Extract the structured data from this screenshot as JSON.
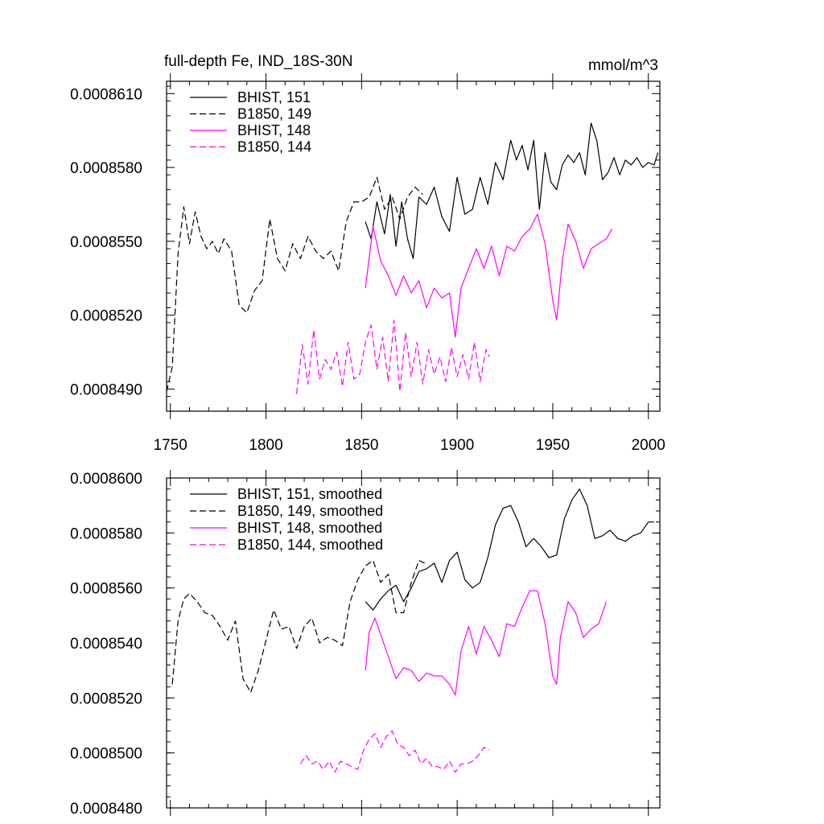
{
  "chart_data": [
    {
      "type": "line",
      "title": "full-depth Fe, IND_18S-30N",
      "units": "mmol/m^3",
      "xlim": [
        1748,
        2006
      ],
      "ylim": [
        0.0008481,
        0.0008615
      ],
      "x_ticks": [
        1750,
        1800,
        1850,
        1900,
        1950,
        2000
      ],
      "y_ticks": [
        "0.0008490",
        "0.0008520",
        "0.0008550",
        "0.0008580",
        "0.0008610"
      ],
      "y_tick_values": [
        0.000849,
        0.000852,
        0.000855,
        0.000858,
        0.000861
      ],
      "legend": [
        "BHIST, 151",
        "B1850, 149",
        "BHIST, 148",
        "B1850, 144"
      ],
      "series": [
        {
          "name": "BHIST, 151",
          "color": "#000000",
          "dash": false,
          "x": [
            1852,
            1855,
            1858,
            1862,
            1865,
            1868,
            1871,
            1874,
            1877,
            1880,
            1884,
            1888,
            1892,
            1896,
            1900,
            1904,
            1908,
            1912,
            1916,
            1920,
            1924,
            1928,
            1931,
            1934,
            1937,
            1940,
            1943,
            1946,
            1949,
            1952,
            1955,
            1958,
            1961,
            1964,
            1967,
            1970,
            1973,
            1976,
            1979,
            1982,
            1985,
            1988,
            1991,
            1994,
            1997,
            2000,
            2003,
            2005
          ],
          "y": [
            0.0008558,
            0.0008551,
            0.0008566,
            0.0008553,
            0.0008569,
            0.0008548,
            0.0008566,
            0.0008551,
            0.0008543,
            0.0008568,
            0.0008565,
            0.0008572,
            0.000856,
            0.0008554,
            0.0008576,
            0.0008561,
            0.0008563,
            0.0008576,
            0.0008565,
            0.0008582,
            0.0008575,
            0.0008591,
            0.0008583,
            0.0008589,
            0.0008579,
            0.0008591,
            0.0008563,
            0.0008586,
            0.0008574,
            0.0008571,
            0.0008581,
            0.0008585,
            0.0008582,
            0.0008586,
            0.0008577,
            0.0008598,
            0.0008591,
            0.0008575,
            0.0008578,
            0.0008584,
            0.0008577,
            0.0008583,
            0.0008581,
            0.0008584,
            0.000858,
            0.0008582,
            0.0008581,
            0.0008586
          ]
        },
        {
          "name": "B1850, 149",
          "color": "#000000",
          "dash": true,
          "x": [
            1748,
            1751,
            1754,
            1757,
            1760,
            1763,
            1766,
            1769,
            1772,
            1775,
            1778,
            1782,
            1786,
            1790,
            1794,
            1798,
            1802,
            1806,
            1810,
            1814,
            1818,
            1822,
            1826,
            1830,
            1834,
            1838,
            1842,
            1846,
            1850,
            1854,
            1858,
            1862,
            1866,
            1870,
            1874,
            1878,
            1882
          ],
          "y": [
            0.0008489,
            0.0008499,
            0.0008545,
            0.0008564,
            0.0008549,
            0.0008562,
            0.0008552,
            0.0008547,
            0.000855,
            0.0008545,
            0.0008551,
            0.0008546,
            0.0008524,
            0.0008521,
            0.000853,
            0.0008534,
            0.0008559,
            0.0008543,
            0.0008538,
            0.0008549,
            0.0008543,
            0.0008552,
            0.0008546,
            0.0008543,
            0.0008546,
            0.0008538,
            0.0008558,
            0.0008566,
            0.0008566,
            0.0008568,
            0.0008576,
            0.0008563,
            0.0008568,
            0.0008559,
            0.0008568,
            0.0008572,
            0.0008569
          ]
        },
        {
          "name": "BHIST, 148",
          "color": "#ff00ff",
          "dash": false,
          "x": [
            1852,
            1856,
            1860,
            1864,
            1868,
            1872,
            1876,
            1880,
            1884,
            1888,
            1892,
            1896,
            1899,
            1902,
            1906,
            1910,
            1914,
            1918,
            1922,
            1926,
            1930,
            1934,
            1938,
            1942,
            1946,
            1950,
            1952,
            1955,
            1958,
            1962,
            1966,
            1970,
            1974,
            1978,
            1981
          ],
          "y": [
            0.0008531,
            0.0008556,
            0.0008542,
            0.0008536,
            0.0008528,
            0.0008536,
            0.0008529,
            0.0008534,
            0.0008523,
            0.0008531,
            0.0008527,
            0.0008529,
            0.0008511,
            0.0008531,
            0.0008539,
            0.0008547,
            0.0008539,
            0.0008548,
            0.0008536,
            0.0008548,
            0.0008546,
            0.0008552,
            0.0008555,
            0.0008561,
            0.0008549,
            0.0008526,
            0.0008518,
            0.0008542,
            0.0008557,
            0.000855,
            0.0008539,
            0.0008547,
            0.0008549,
            0.0008551,
            0.0008555
          ]
        },
        {
          "name": "B1850, 144",
          "color": "#ff00ff",
          "dash": true,
          "x": [
            1816,
            1819,
            1822,
            1825,
            1828,
            1831,
            1834,
            1837,
            1840,
            1843,
            1846,
            1849,
            1852,
            1855,
            1858,
            1861,
            1864,
            1867,
            1870,
            1873,
            1876,
            1879,
            1882,
            1885,
            1888,
            1891,
            1894,
            1897,
            1900,
            1903,
            1906,
            1909,
            1912,
            1915,
            1917
          ],
          "y": [
            0.0008488,
            0.0008508,
            0.0008492,
            0.0008514,
            0.0008494,
            0.0008502,
            0.0008498,
            0.0008505,
            0.0008491,
            0.0008509,
            0.0008494,
            0.0008496,
            0.0008509,
            0.0008516,
            0.0008498,
            0.0008511,
            0.0008493,
            0.0008518,
            0.0008489,
            0.0008513,
            0.0008495,
            0.0008509,
            0.0008492,
            0.0008506,
            0.0008496,
            0.0008503,
            0.0008493,
            0.0008507,
            0.0008495,
            0.0008504,
            0.0008494,
            0.0008509,
            0.0008493,
            0.0008506,
            0.0008503
          ]
        }
      ]
    },
    {
      "type": "line",
      "title": "",
      "units": "",
      "xlim": [
        1748,
        2006
      ],
      "ylim": [
        0.000848,
        0.00086
      ],
      "x_ticks": [
        1750,
        1800,
        1850,
        1900,
        1950,
        2000
      ],
      "y_ticks": [
        "0.0008480",
        "0.0008500",
        "0.0008520",
        "0.0008540",
        "0.0008560",
        "0.0008580",
        "0.0008600"
      ],
      "y_tick_values": [
        0.000848,
        0.00085,
        0.000852,
        0.000854,
        0.000856,
        0.000858,
        0.00086
      ],
      "legend": [
        "BHIST, 151, smoothed",
        "B1850, 149, smoothed",
        "BHIST, 148, smoothed",
        "B1850, 144, smoothed"
      ],
      "series": [
        {
          "name": "BHIST, 151, smoothed",
          "color": "#000000",
          "dash": false,
          "x": [
            1852,
            1856,
            1860,
            1864,
            1868,
            1872,
            1876,
            1880,
            1884,
            1888,
            1892,
            1896,
            1900,
            1904,
            1908,
            1912,
            1916,
            1920,
            1924,
            1928,
            1932,
            1936,
            1940,
            1944,
            1948,
            1952,
            1956,
            1960,
            1964,
            1968,
            1972,
            1976,
            1980,
            1984,
            1988,
            1992,
            1996,
            2000,
            2003
          ],
          "y": [
            0.0008555,
            0.0008552,
            0.0008556,
            0.0008559,
            0.0008561,
            0.0008555,
            0.000856,
            0.0008566,
            0.0008567,
            0.0008569,
            0.0008562,
            0.000857,
            0.0008573,
            0.0008563,
            0.000856,
            0.0008562,
            0.0008571,
            0.0008583,
            0.0008589,
            0.000859,
            0.0008584,
            0.0008575,
            0.0008578,
            0.0008575,
            0.0008571,
            0.0008572,
            0.0008585,
            0.0008592,
            0.0008596,
            0.000859,
            0.0008578,
            0.0008579,
            0.0008581,
            0.0008578,
            0.0008577,
            0.0008579,
            0.000858,
            0.0008584,
            0.0008584
          ]
        },
        {
          "name": "B1850, 149, smoothed",
          "color": "#000000",
          "dash": true,
          "x": [
            1751,
            1754,
            1757,
            1760,
            1764,
            1768,
            1772,
            1776,
            1780,
            1784,
            1788,
            1792,
            1796,
            1800,
            1804,
            1808,
            1812,
            1816,
            1820,
            1824,
            1828,
            1832,
            1836,
            1840,
            1844,
            1848,
            1852,
            1856,
            1860,
            1864,
            1868,
            1872,
            1876,
            1880,
            1883
          ],
          "y": [
            0.0008525,
            0.0008548,
            0.0008556,
            0.0008558,
            0.0008555,
            0.0008551,
            0.000855,
            0.0008546,
            0.0008541,
            0.0008548,
            0.0008527,
            0.0008522,
            0.000853,
            0.0008541,
            0.0008552,
            0.0008545,
            0.0008546,
            0.0008538,
            0.0008546,
            0.0008549,
            0.000854,
            0.0008542,
            0.0008541,
            0.0008539,
            0.0008555,
            0.0008563,
            0.0008568,
            0.000857,
            0.0008562,
            0.0008565,
            0.0008551,
            0.0008551,
            0.0008562,
            0.000857,
            0.0008569
          ]
        },
        {
          "name": "BHIST, 148, smoothed",
          "color": "#ff00ff",
          "dash": false,
          "x": [
            1852,
            1854,
            1857,
            1860,
            1864,
            1868,
            1872,
            1876,
            1880,
            1884,
            1888,
            1892,
            1896,
            1899,
            1902,
            1906,
            1910,
            1914,
            1918,
            1922,
            1926,
            1930,
            1934,
            1938,
            1942,
            1946,
            1950,
            1952,
            1954,
            1958,
            1962,
            1966,
            1970,
            1974,
            1978
          ],
          "y": [
            0.000853,
            0.0008544,
            0.0008549,
            0.0008543,
            0.0008535,
            0.0008527,
            0.0008531,
            0.000853,
            0.0008526,
            0.0008529,
            0.0008528,
            0.0008528,
            0.0008525,
            0.0008521,
            0.0008537,
            0.0008546,
            0.0008536,
            0.0008546,
            0.0008541,
            0.0008535,
            0.0008547,
            0.0008546,
            0.0008553,
            0.0008559,
            0.0008559,
            0.0008547,
            0.0008528,
            0.0008525,
            0.0008542,
            0.0008555,
            0.0008551,
            0.0008542,
            0.0008545,
            0.0008547,
            0.0008555
          ]
        },
        {
          "name": "B1850, 144, smoothed",
          "color": "#ff00ff",
          "dash": true,
          "x": [
            1818,
            1821,
            1824,
            1827,
            1830,
            1833,
            1836,
            1839,
            1842,
            1845,
            1848,
            1851,
            1854,
            1857,
            1860,
            1863,
            1866,
            1869,
            1872,
            1875,
            1878,
            1881,
            1884,
            1887,
            1890,
            1893,
            1896,
            1899,
            1902,
            1905,
            1908,
            1911,
            1914,
            1917
          ],
          "y": [
            0.0008496,
            0.0008499,
            0.0008496,
            0.0008497,
            0.0008494,
            0.0008497,
            0.0008493,
            0.0008497,
            0.0008496,
            0.0008495,
            0.0008494,
            0.0008501,
            0.0008505,
            0.0008507,
            0.0008502,
            0.0008506,
            0.0008508,
            0.0008503,
            0.0008502,
            0.0008499,
            0.0008501,
            0.0008496,
            0.0008498,
            0.0008495,
            0.0008495,
            0.0008494,
            0.0008497,
            0.0008493,
            0.0008496,
            0.0008496,
            0.0008497,
            0.0008499,
            0.0008502,
            0.0008501
          ]
        }
      ]
    }
  ]
}
